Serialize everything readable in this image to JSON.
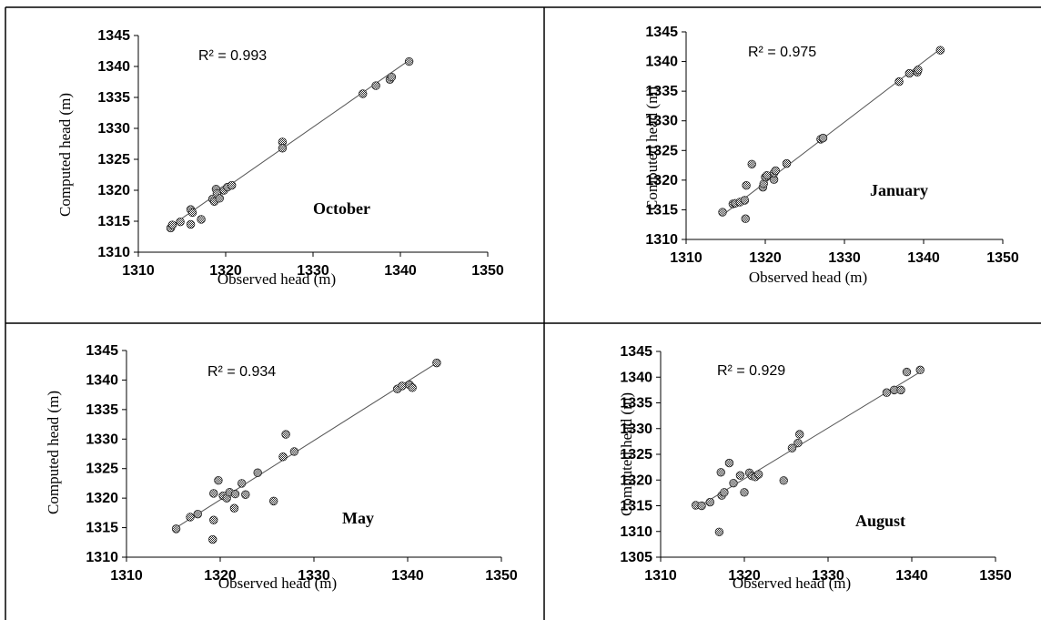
{
  "chart_data": [
    {
      "type": "scatter",
      "xlabel": "Observed  head (m)",
      "ylabel": "Computed head (m)",
      "annotation": "October",
      "r_squared_label": "R² = 0.993",
      "xlim": [
        1310,
        1350
      ],
      "ylim": [
        1310,
        1345
      ],
      "x_ticks": [
        1310,
        1320,
        1330,
        1340,
        1350
      ],
      "y_ticks": [
        1310,
        1315,
        1320,
        1325,
        1330,
        1335,
        1340,
        1345
      ],
      "trendline": [
        [
          1313.5,
          1314.0
        ],
        [
          1341.0,
          1341.0
        ]
      ],
      "points": [
        [
          1313.7,
          1313.9
        ],
        [
          1313.9,
          1314.4
        ],
        [
          1314.8,
          1314.9
        ],
        [
          1316.0,
          1316.9
        ],
        [
          1316.2,
          1316.4
        ],
        [
          1316.0,
          1314.5
        ],
        [
          1317.2,
          1315.3
        ],
        [
          1318.5,
          1318.6
        ],
        [
          1318.7,
          1318.2
        ],
        [
          1318.9,
          1320.2
        ],
        [
          1319.0,
          1319.5
        ],
        [
          1319.3,
          1318.7
        ],
        [
          1319.8,
          1320.0
        ],
        [
          1320.2,
          1320.5
        ],
        [
          1320.7,
          1320.8
        ],
        [
          1326.5,
          1327.8
        ],
        [
          1326.5,
          1326.8
        ],
        [
          1335.7,
          1335.6
        ],
        [
          1337.2,
          1336.9
        ],
        [
          1338.8,
          1337.9
        ],
        [
          1339.0,
          1338.3
        ],
        [
          1341.0,
          1340.8
        ]
      ]
    },
    {
      "type": "scatter",
      "xlabel": "Observed  head (m)",
      "ylabel": "Computed head (m)",
      "annotation": "January",
      "r_squared_label": "R² = 0.975",
      "xlim": [
        1310,
        1350
      ],
      "ylim": [
        1310,
        1345
      ],
      "x_ticks": [
        1310,
        1320,
        1330,
        1340,
        1350
      ],
      "y_ticks": [
        1310,
        1315,
        1320,
        1325,
        1330,
        1335,
        1340,
        1345
      ],
      "trendline": [
        [
          1314.5,
          1314.0
        ],
        [
          1342.0,
          1342.0
        ]
      ],
      "points": [
        [
          1314.6,
          1314.6
        ],
        [
          1315.9,
          1316.0
        ],
        [
          1316.2,
          1316.1
        ],
        [
          1316.8,
          1316.3
        ],
        [
          1317.4,
          1316.6
        ],
        [
          1317.5,
          1313.5
        ],
        [
          1317.6,
          1319.1
        ],
        [
          1318.3,
          1322.7
        ],
        [
          1319.7,
          1318.8
        ],
        [
          1319.8,
          1319.4
        ],
        [
          1320.0,
          1320.5
        ],
        [
          1320.2,
          1320.8
        ],
        [
          1321.1,
          1320.1
        ],
        [
          1321.1,
          1321.2
        ],
        [
          1321.3,
          1321.6
        ],
        [
          1322.7,
          1322.8
        ],
        [
          1327.0,
          1326.9
        ],
        [
          1327.3,
          1327.1
        ],
        [
          1336.9,
          1336.6
        ],
        [
          1338.2,
          1338.0
        ],
        [
          1339.2,
          1338.2
        ],
        [
          1339.3,
          1338.6
        ],
        [
          1342.1,
          1341.9
        ]
      ]
    },
    {
      "type": "scatter",
      "xlabel": "Observed  head (m)",
      "ylabel": "Computed head (m)",
      "annotation": "May",
      "r_squared_label": "R² = 0.934",
      "xlim": [
        1310,
        1350
      ],
      "ylim": [
        1310,
        1345
      ],
      "x_ticks": [
        1310,
        1320,
        1330,
        1340,
        1350
      ],
      "y_ticks": [
        1310,
        1315,
        1320,
        1325,
        1330,
        1335,
        1340,
        1345
      ],
      "trendline": [
        [
          1315.3,
          1315.0
        ],
        [
          1343.0,
          1342.8
        ]
      ],
      "points": [
        [
          1315.3,
          1314.8
        ],
        [
          1316.8,
          1316.8
        ],
        [
          1317.6,
          1317.3
        ],
        [
          1319.2,
          1313.0
        ],
        [
          1319.3,
          1316.3
        ],
        [
          1319.3,
          1320.8
        ],
        [
          1319.8,
          1323.0
        ],
        [
          1320.3,
          1320.4
        ],
        [
          1320.7,
          1320.0
        ],
        [
          1321.0,
          1321.0
        ],
        [
          1321.5,
          1318.3
        ],
        [
          1321.6,
          1320.7
        ],
        [
          1322.3,
          1322.5
        ],
        [
          1322.7,
          1320.6
        ],
        [
          1324.0,
          1324.3
        ],
        [
          1325.7,
          1319.5
        ],
        [
          1326.7,
          1327.0
        ],
        [
          1327.0,
          1330.8
        ],
        [
          1327.9,
          1327.9
        ],
        [
          1338.9,
          1338.5
        ],
        [
          1339.4,
          1339.0
        ],
        [
          1340.2,
          1339.2
        ],
        [
          1340.5,
          1338.7
        ],
        [
          1343.1,
          1342.9
        ]
      ]
    },
    {
      "type": "scatter",
      "xlabel": "Observed  head (m)",
      "ylabel": "Computed head (m)",
      "annotation": "August",
      "r_squared_label": "R² = 0.929",
      "xlim": [
        1310,
        1350
      ],
      "ylim": [
        1305,
        1345
      ],
      "x_ticks": [
        1310,
        1320,
        1330,
        1340,
        1350
      ],
      "y_ticks": [
        1305,
        1310,
        1315,
        1320,
        1325,
        1330,
        1335,
        1340,
        1345
      ],
      "trendline": [
        [
          1314.0,
          1314.3
        ],
        [
          1341.0,
          1341.0
        ]
      ],
      "points": [
        [
          1314.2,
          1315.1
        ],
        [
          1314.9,
          1315.0
        ],
        [
          1315.9,
          1315.7
        ],
        [
          1317.0,
          1309.9
        ],
        [
          1317.2,
          1321.5
        ],
        [
          1317.3,
          1317.0
        ],
        [
          1317.6,
          1317.6
        ],
        [
          1318.2,
          1323.3
        ],
        [
          1318.7,
          1319.4
        ],
        [
          1319.5,
          1320.9
        ],
        [
          1320.0,
          1317.6
        ],
        [
          1320.6,
          1321.4
        ],
        [
          1320.9,
          1320.8
        ],
        [
          1321.3,
          1320.6
        ],
        [
          1321.7,
          1321.1
        ],
        [
          1324.7,
          1319.9
        ],
        [
          1325.7,
          1326.2
        ],
        [
          1326.4,
          1327.2
        ],
        [
          1326.6,
          1328.9
        ],
        [
          1337.0,
          1337.0
        ],
        [
          1337.9,
          1337.5
        ],
        [
          1338.7,
          1337.5
        ],
        [
          1339.4,
          1341.0
        ],
        [
          1341.0,
          1341.4
        ]
      ]
    }
  ]
}
